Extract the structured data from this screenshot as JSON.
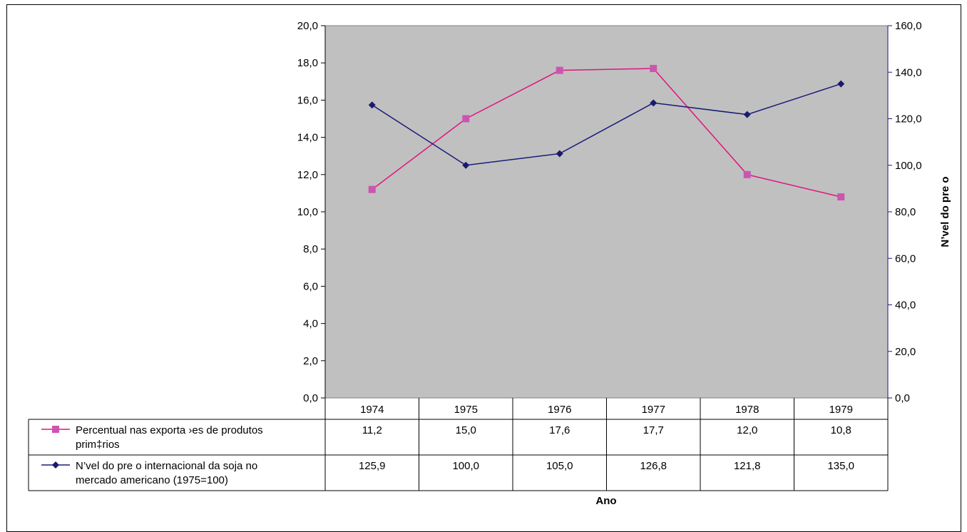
{
  "chart_data": {
    "type": "line",
    "categories": [
      "1974",
      "1975",
      "1976",
      "1977",
      "1978",
      "1979"
    ],
    "series": [
      {
        "name": "Percentual nas exporta ›es de produtos prim‡rios",
        "name_lines": [
          "Percentual nas exporta ›es de produtos",
          "prim‡rios"
        ],
        "axis": "left",
        "values": [
          11.2,
          15.0,
          17.6,
          17.7,
          12.0,
          10.8
        ],
        "labels": [
          "11,2",
          "15,0",
          "17,6",
          "17,7",
          "12,0",
          "10,8"
        ],
        "color": "#e0147e",
        "marker_color": "#cc55b0",
        "marker": "square"
      },
      {
        "name": "N’vel do pre o internacional da soja no mercado americano (1975=100)",
        "name_lines": [
          "N’vel do pre o internacional da soja no",
          "mercado americano (1975=100)"
        ],
        "axis": "right",
        "values": [
          125.9,
          100.0,
          105.0,
          126.8,
          121.8,
          135.0
        ],
        "labels": [
          "125,9",
          "100,0",
          "105,0",
          "126,8",
          "121,8",
          "135,0"
        ],
        "color": "#1a1a7a",
        "marker_color": "#1a1a6e",
        "marker": "diamond"
      }
    ],
    "xlabel": "Ano",
    "y2label": "N’vel do pre o",
    "ylim": [
      0,
      20
    ],
    "y2lim": [
      0,
      160
    ],
    "yticks": [
      "0,0",
      "2,0",
      "4,0",
      "6,0",
      "8,0",
      "10,0",
      "12,0",
      "14,0",
      "16,0",
      "18,0",
      "20,0"
    ],
    "y2ticks": [
      "0,0",
      "20,0",
      "40,0",
      "60,0",
      "80,0",
      "100,0",
      "120,0",
      "140,0",
      "160,0"
    ],
    "plot_background": "#c0c0c0",
    "data_table": true,
    "grid": false
  }
}
